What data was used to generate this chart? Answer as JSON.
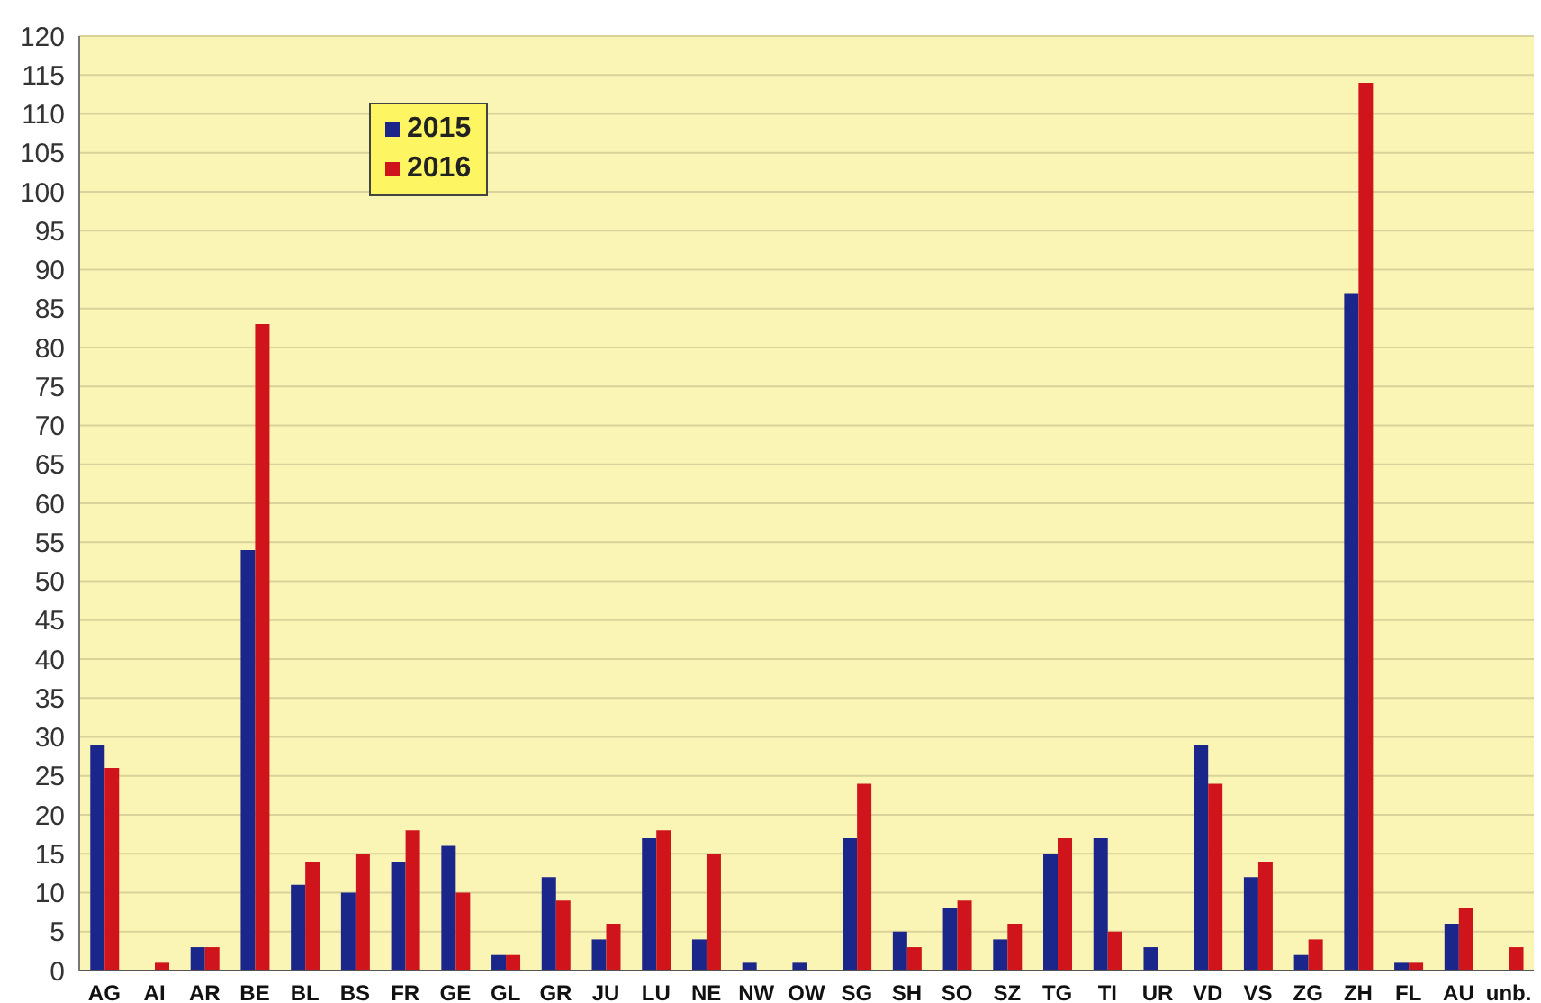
{
  "chart_data": {
    "type": "bar",
    "categories": [
      "AG",
      "AI",
      "AR",
      "BE",
      "BL",
      "BS",
      "FR",
      "GE",
      "GL",
      "GR",
      "JU",
      "LU",
      "NE",
      "NW",
      "OW",
      "SG",
      "SH",
      "SO",
      "SZ",
      "TG",
      "TI",
      "UR",
      "VD",
      "VS",
      "ZG",
      "ZH",
      "FL",
      "AU",
      "unb."
    ],
    "series": [
      {
        "name": "2015",
        "color": "#1b268a",
        "values": [
          29,
          0,
          3,
          54,
          11,
          10,
          14,
          16,
          2,
          12,
          4,
          17,
          4,
          1,
          1,
          17,
          5,
          8,
          4,
          15,
          17,
          3,
          29,
          12,
          2,
          87,
          1,
          6,
          0
        ]
      },
      {
        "name": "2016",
        "color": "#d0141c",
        "values": [
          26,
          1,
          3,
          83,
          14,
          15,
          18,
          10,
          2,
          9,
          6,
          18,
          15,
          0,
          0,
          24,
          3,
          9,
          6,
          17,
          5,
          0,
          24,
          14,
          4,
          114,
          1,
          8,
          3
        ]
      }
    ],
    "ylim": [
      0,
      120
    ],
    "yticks": [
      0,
      5,
      10,
      15,
      20,
      25,
      30,
      35,
      40,
      45,
      50,
      55,
      60,
      65,
      70,
      75,
      80,
      85,
      90,
      95,
      100,
      105,
      110,
      115,
      120
    ],
    "grid": "y",
    "legend": "top left"
  }
}
